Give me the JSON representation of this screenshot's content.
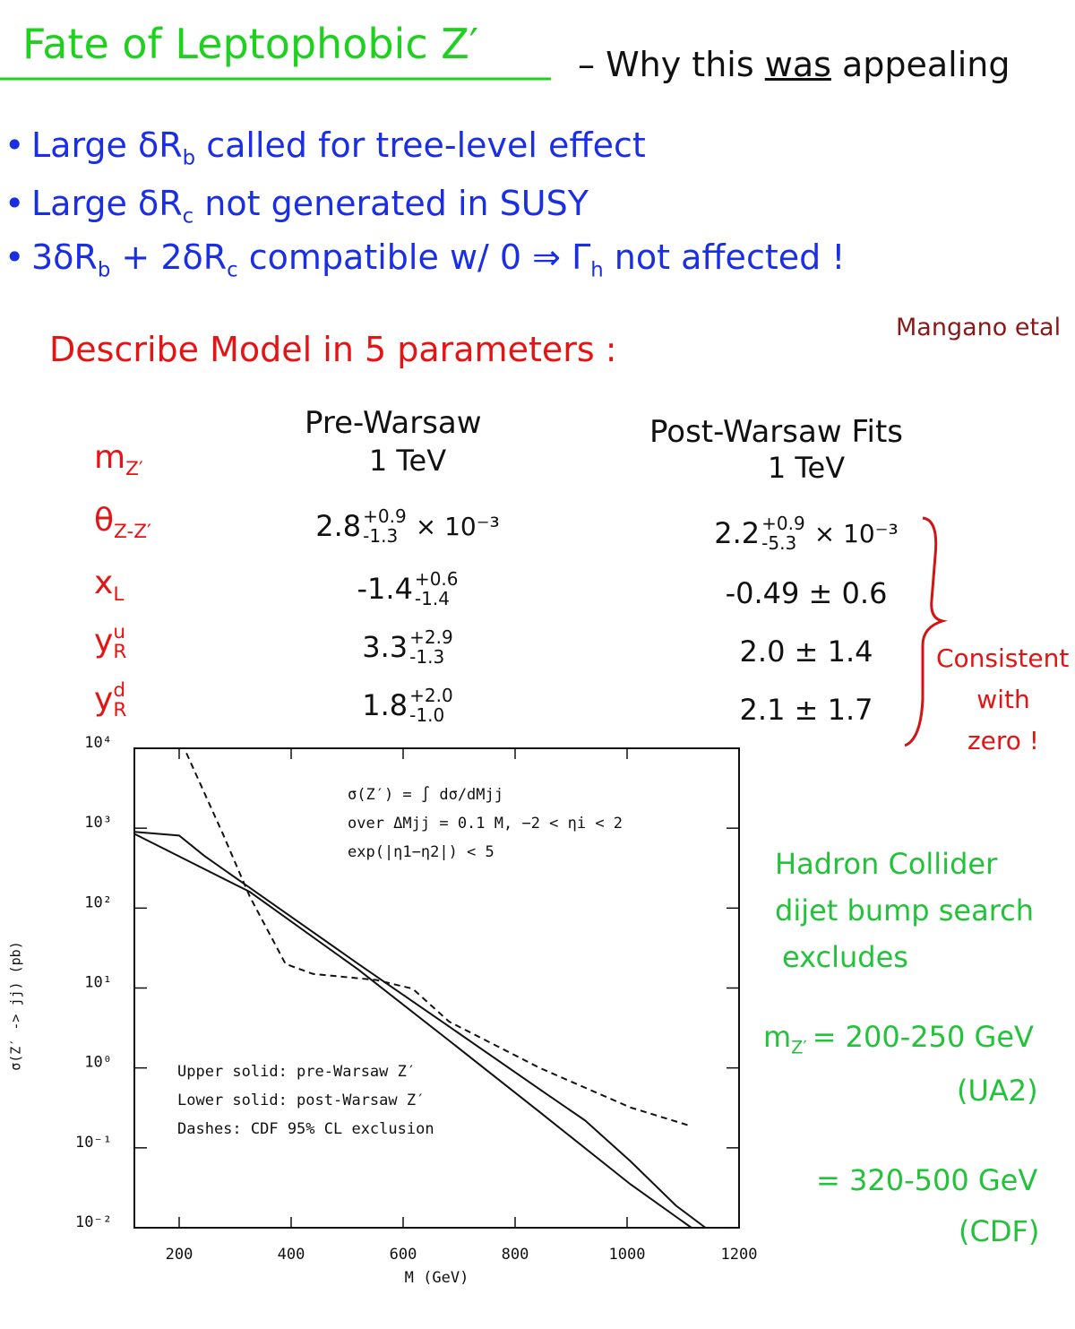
{
  "header": {
    "title": "Fate of Leptophobic Z′",
    "tagline": [
      "– Why this ",
      "was",
      " appealing"
    ]
  },
  "bullets": [
    [
      "Large δR",
      "b",
      " called for tree-level effect"
    ],
    [
      "Large δR",
      "c",
      " not generated in SUSY"
    ],
    [
      "3δR",
      "b",
      " + 2δR",
      "c",
      " compatible w/ 0 ⇒ Γ",
      "h",
      " not affected !"
    ]
  ],
  "model_heading": "Describe Model in 5 parameters :",
  "citation": "Mangano etal",
  "table": {
    "columns": [
      "Pre-Warsaw",
      "Post-Warsaw Fits"
    ],
    "rows": [
      {
        "param": {
          "symbol": "m",
          "sub": "Z′"
        },
        "pre": {
          "value": "1 TeV"
        },
        "post": {
          "value": "1 TeV"
        }
      },
      {
        "param": {
          "symbol": "θ",
          "sub": "Z-Z′"
        },
        "pre": {
          "value": "2.8",
          "plus": "+0.9",
          "minus": "-1.3",
          "suffix": "× 10⁻³"
        },
        "post": {
          "value": "2.2",
          "plus": "+0.9",
          "minus": "-5.3",
          "suffix": "× 10⁻³"
        }
      },
      {
        "param": {
          "symbol": "x",
          "sub": "L"
        },
        "pre": {
          "value": "-1.4",
          "plus": "+0.6",
          "minus": "-1.4"
        },
        "post": {
          "value": "-0.49 ± 0.6"
        }
      },
      {
        "param": {
          "symbol": "y",
          "sub": "R",
          "sup": "u"
        },
        "pre": {
          "value": "3.3",
          "plus": "+2.9",
          "minus": "-1.3"
        },
        "post": {
          "value": "2.0 ± 1.4"
        }
      },
      {
        "param": {
          "symbol": "y",
          "sub": "R",
          "sup": "d"
        },
        "pre": {
          "value": "1.8",
          "plus": "+2.0",
          "minus": "-1.0"
        },
        "post": {
          "value": "2.1 ± 1.7"
        }
      }
    ]
  },
  "brace_note": [
    "Consistent",
    "with",
    "zero !"
  ],
  "side_note": {
    "lines": [
      "Hadron Collider",
      "dijet bump search",
      "excludes"
    ],
    "limits": [
      {
        "symbol": "m",
        "sub": "Z′",
        "range": "= 200-250 GeV",
        "experiment": "(UA2)"
      },
      {
        "range": "= 320-500 GeV",
        "experiment": "(CDF)"
      }
    ]
  },
  "chart_data": {
    "type": "line",
    "xlabel": "M (GeV)",
    "ylabel": "σ(Z′ -> jj) (pb)",
    "annotations": [
      "σ(Z′) = ∫ dσ/dMjj",
      "over ΔMjj = 0.1 M,  −2 < ηi < 2",
      "exp(|η1−η2|) < 5"
    ],
    "xlim": [
      120,
      1200
    ],
    "xticks": [
      200,
      400,
      600,
      800,
      1000,
      1200
    ],
    "ylim": [
      0.01,
      10000
    ],
    "yscale": "log",
    "yticks": [
      {
        "value": 0.01,
        "label": "10⁻²"
      },
      {
        "value": 0.1,
        "label": "10⁻¹"
      },
      {
        "value": 1,
        "label": "10⁰"
      },
      {
        "value": 10,
        "label": "10¹"
      },
      {
        "value": 100,
        "label": "10²"
      },
      {
        "value": 1000,
        "label": "10³"
      },
      {
        "value": 10000,
        "label": "10⁴"
      }
    ],
    "series": [
      {
        "name": "Upper solid: pre-Warsaw Z′",
        "color": "#111111",
        "dash": false,
        "x": [
          120,
          200,
          245,
          326,
          520,
          682,
          844,
          925,
          1006,
          1087,
          1140
        ],
        "values": [
          900,
          810,
          450,
          180,
          20,
          3.3,
          0.54,
          0.22,
          0.068,
          0.019,
          0.01
        ]
      },
      {
        "name": "Lower solid: post-Warsaw Z′",
        "color": "#111111",
        "dash": false,
        "x": [
          120,
          326,
          520,
          682,
          844,
          1006,
          1115
        ],
        "values": [
          850,
          160,
          17,
          2.2,
          0.28,
          0.035,
          0.01
        ]
      },
      {
        "name": "Dashes: CDF 95% CL exclusion",
        "color": "#111111",
        "dash": true,
        "x": [
          213,
          278,
          326,
          390,
          439,
          552,
          617,
          682,
          844,
          1006,
          1111
        ],
        "values": [
          8700,
          850,
          140,
          20,
          15,
          12.6,
          9.8,
          3.8,
          1.0,
          0.32,
          0.19
        ]
      }
    ]
  }
}
